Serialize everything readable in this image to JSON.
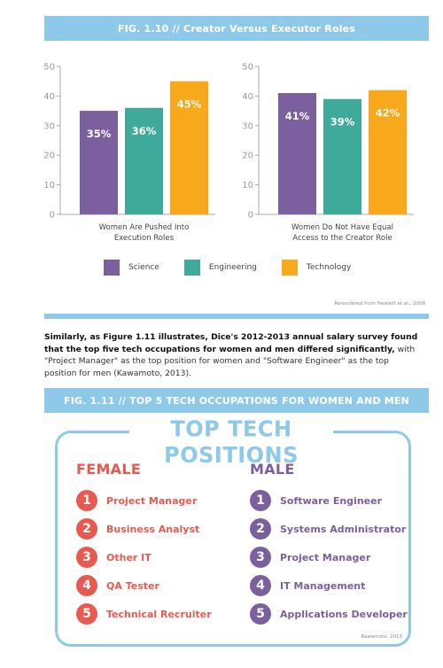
{
  "fig10": {
    "banner": "FIG. 1.10  //  Creator Versus Executor Roles",
    "credit": "Rerendered from Hewlett et al., 2008",
    "legend": [
      {
        "name": "Science",
        "color": "#7b5f9f"
      },
      {
        "name": "Engineering",
        "color": "#3fa99a"
      },
      {
        "name": "Technology",
        "color": "#f7a81b"
      }
    ]
  },
  "chart_data": [
    {
      "type": "bar",
      "categories": [
        "Science",
        "Engineering",
        "Technology"
      ],
      "values": [
        35,
        36,
        45
      ],
      "data_labels": [
        "35%",
        "36%",
        "45%"
      ],
      "xlabel_lines": [
        "Women Are Pushed Into",
        "Execution Roles"
      ],
      "ylim": [
        0,
        50
      ],
      "yticks": [
        "0",
        "10",
        "20",
        "30",
        "40",
        "50"
      ],
      "colors": [
        "#7b5f9f",
        "#3fa99a",
        "#f7a81b"
      ],
      "grid": false
    },
    {
      "type": "bar",
      "categories": [
        "Science",
        "Engineering",
        "Technology"
      ],
      "values": [
        41,
        39,
        42
      ],
      "data_labels": [
        "41%",
        "39%",
        "42%"
      ],
      "xlabel_lines": [
        "Women Do Not Have Equal",
        "Access to the Creator Role"
      ],
      "ylim": [
        0,
        50
      ],
      "yticks": [
        "0",
        "10",
        "20",
        "30",
        "40",
        "50"
      ],
      "colors": [
        "#7b5f9f",
        "#3fa99a",
        "#f7a81b"
      ],
      "grid": false
    }
  ],
  "paragraph": {
    "bold": "Similarly, as Figure 1.11 illustrates, Dice's 2012-2013 annual salary survey found that the top five tech occupations for women and men differed significantly,",
    "rest": " with \"Project Manager\" as the top position for women and \"Software Engineer\" as the top position for men (Kawamoto, 2013)."
  },
  "fig11": {
    "banner": "FIG. 1.11  //  TOP 5 TECH OCCUPATIONS FOR WOMEN AND MEN",
    "title": "TOP TECH POSITIONS",
    "credit": "Kawamoto, 2013",
    "female": {
      "heading": "FEMALE",
      "items": [
        {
          "num": "1",
          "label": "Project Manager"
        },
        {
          "num": "2",
          "label": "Business Analyst"
        },
        {
          "num": "3",
          "label": "Other IT"
        },
        {
          "num": "4",
          "label": "QA Tester"
        },
        {
          "num": "5",
          "label": "Technical Recruiter"
        }
      ]
    },
    "male": {
      "heading": "MALE",
      "items": [
        {
          "num": "1",
          "label": "Software Engineer"
        },
        {
          "num": "2",
          "label": "Systems Administrator"
        },
        {
          "num": "3",
          "label": "Project Manager"
        },
        {
          "num": "4",
          "label": "IT Management"
        },
        {
          "num": "5",
          "label": "Applications Developer"
        }
      ]
    }
  }
}
